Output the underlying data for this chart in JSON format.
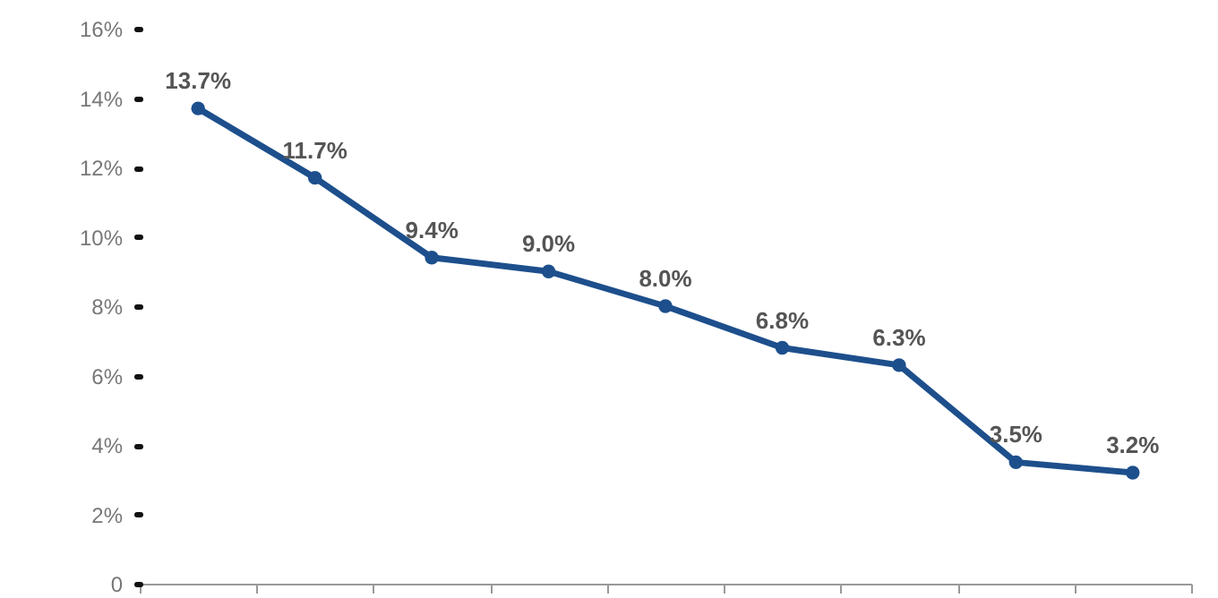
{
  "chart_data": {
    "type": "line",
    "categories": [
      null,
      null,
      null,
      null,
      null,
      null,
      null,
      null,
      null
    ],
    "series": [
      {
        "color": "#1d4f8c",
        "values": [
          13.7,
          11.7,
          9.4,
          9.0,
          8.0,
          6.8,
          6.3,
          3.5,
          3.2
        ],
        "value_labels": [
          "13.7%",
          "11.7%",
          "9.4%",
          "9.0%",
          "8.0%",
          "6.8%",
          "6.3%",
          "3.5%",
          "3.2%"
        ]
      }
    ],
    "ylim": [
      0,
      16
    ],
    "yticks": [
      0,
      {
        "value": 2,
        "label": "2%"
      },
      {
        "value": 4,
        "label": "4%"
      },
      {
        "value": 6,
        "label": "6%"
      },
      {
        "value": 8,
        "label": "8%"
      },
      {
        "value": 10,
        "label": "10%"
      },
      {
        "value": 12,
        "label": "12%"
      },
      {
        "value": 14,
        "label": "14%"
      },
      {
        "value": 16,
        "label": "16%"
      }
    ],
    "tick_labels": "y",
    "grid": false,
    "marker": "circle",
    "line_style": "solid"
  }
}
